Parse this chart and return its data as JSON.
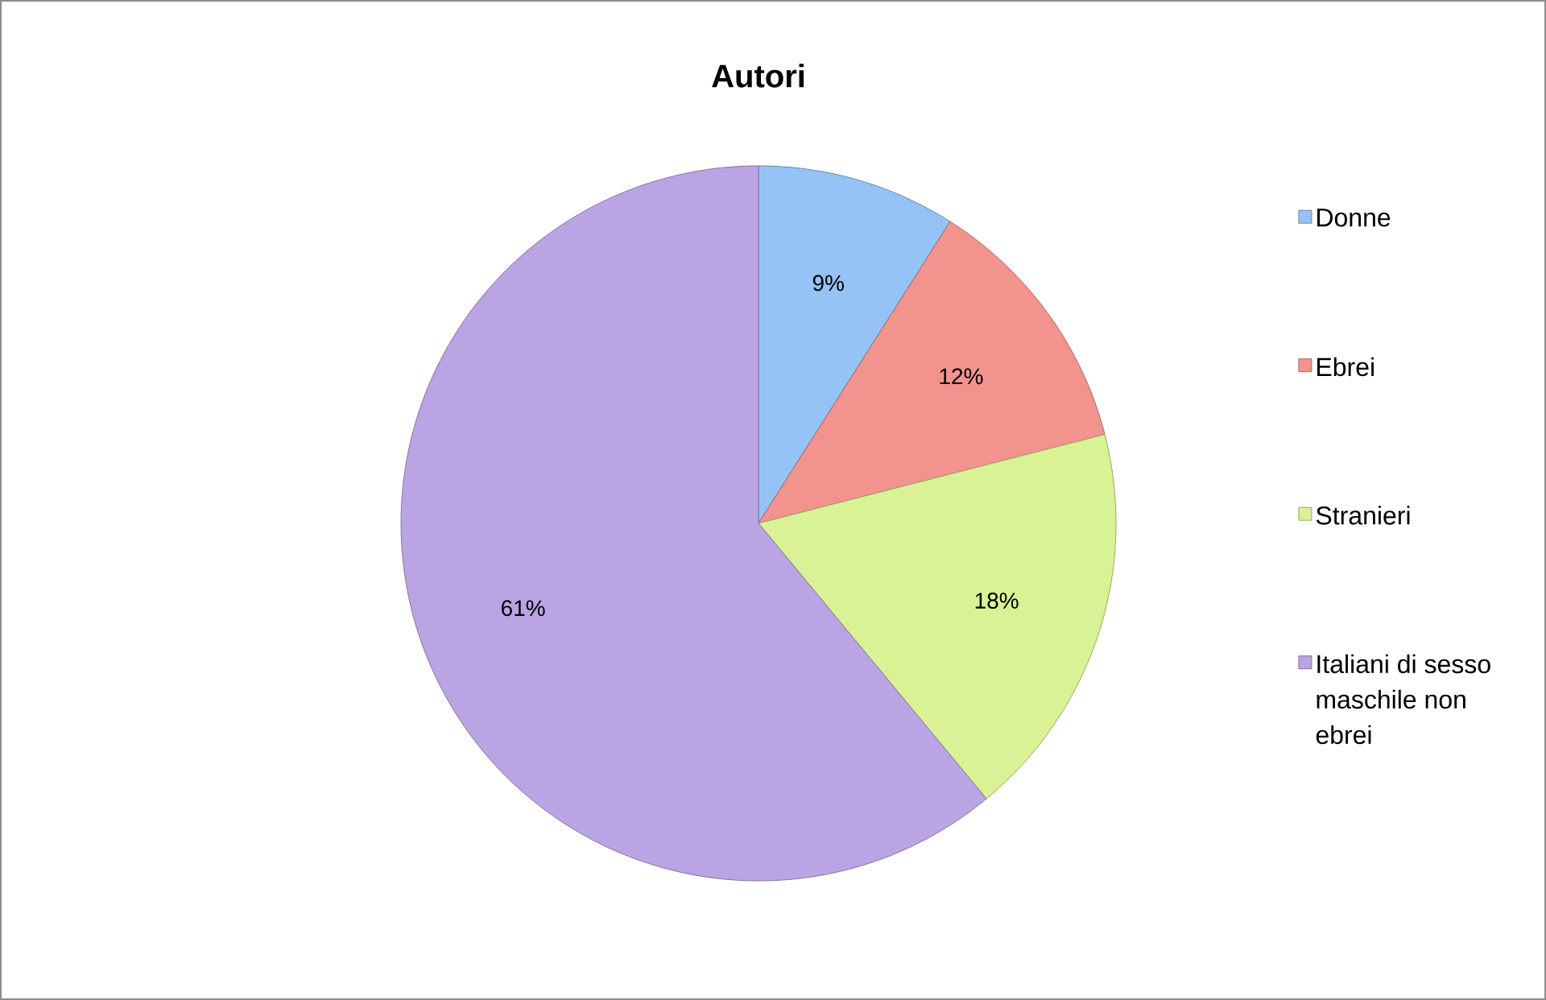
{
  "chart_data": {
    "type": "pie",
    "title": "Autori",
    "categories": [
      "Donne",
      "Ebrei",
      "Stranieri",
      "Italiani di sesso maschile non ebrei"
    ],
    "values": [
      9,
      12,
      18,
      61
    ],
    "colors": [
      "#95c3f5",
      "#f3938d",
      "#d9f295",
      "#bba4e3"
    ],
    "value_labels": [
      "9%",
      "12%",
      "18%",
      "61%"
    ],
    "legend": "right"
  }
}
